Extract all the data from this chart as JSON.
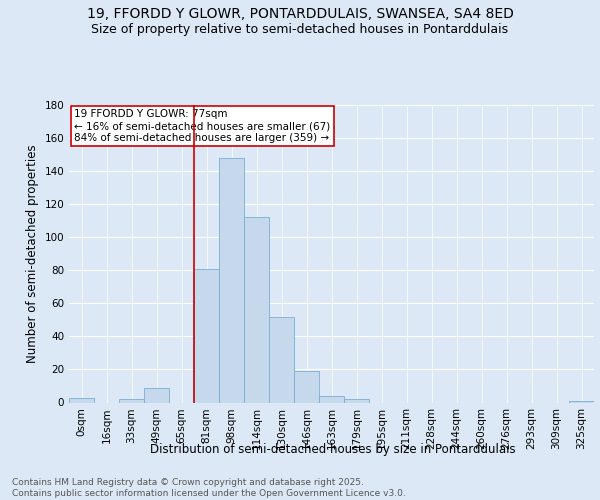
{
  "title_line1": "19, FFORDD Y GLOWR, PONTARDDULAIS, SWANSEA, SA4 8ED",
  "title_line2": "Size of property relative to semi-detached houses in Pontarddulais",
  "xlabel": "Distribution of semi-detached houses by size in Pontarddulais",
  "ylabel": "Number of semi-detached properties",
  "categories": [
    "0sqm",
    "16sqm",
    "33sqm",
    "49sqm",
    "65sqm",
    "81sqm",
    "98sqm",
    "114sqm",
    "130sqm",
    "146sqm",
    "163sqm",
    "179sqm",
    "195sqm",
    "211sqm",
    "228sqm",
    "244sqm",
    "260sqm",
    "276sqm",
    "293sqm",
    "309sqm",
    "325sqm"
  ],
  "values": [
    3,
    0,
    2,
    9,
    0,
    81,
    148,
    112,
    52,
    19,
    4,
    2,
    0,
    0,
    0,
    0,
    0,
    0,
    0,
    0,
    1
  ],
  "bar_color": "#c5d8ec",
  "bar_edge_color": "#7aafd4",
  "property_line_x": 5.0,
  "annotation_text": "19 FFORDD Y GLOWR: 77sqm\n← 16% of semi-detached houses are smaller (67)\n84% of semi-detached houses are larger (359) →",
  "annotation_box_color": "#ffffff",
  "annotation_box_edge_color": "#cc0000",
  "vline_color": "#cc0000",
  "ylim": [
    0,
    180
  ],
  "yticks": [
    0,
    20,
    40,
    60,
    80,
    100,
    120,
    140,
    160,
    180
  ],
  "footer_text": "Contains HM Land Registry data © Crown copyright and database right 2025.\nContains public sector information licensed under the Open Government Licence v3.0.",
  "title_fontsize": 10,
  "subtitle_fontsize": 9,
  "axis_label_fontsize": 8.5,
  "tick_fontsize": 7.5,
  "annotation_fontsize": 7.5,
  "footer_fontsize": 6.5,
  "fig_facecolor": "#dce8f5",
  "plot_facecolor": "#dce8f5"
}
